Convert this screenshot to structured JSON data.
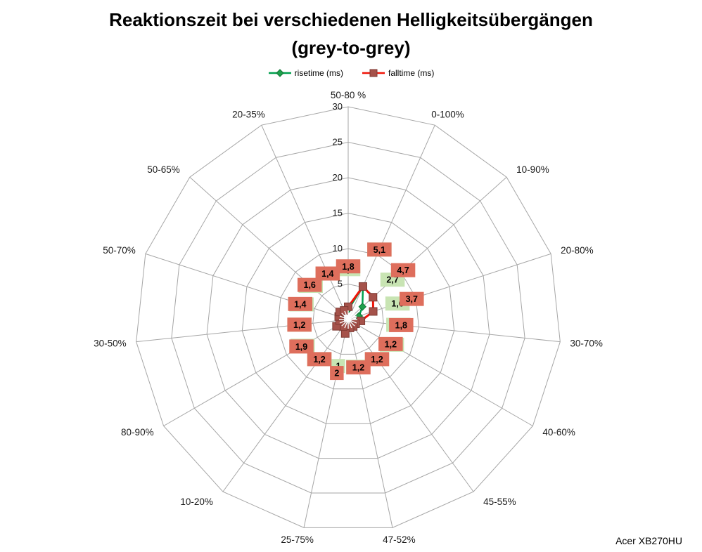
{
  "title": {
    "line1": "Reaktionszeit bei verschiedenen Helligkeitsübergängen",
    "line2": "(grey-to-grey)"
  },
  "footer": {
    "model": "Acer XB270HU"
  },
  "chart_data": {
    "type": "radar",
    "title": "Reaktionszeit bei verschiedenen Helligkeitsübergängen (grey-to-grey)",
    "unit": "ms",
    "legend_position": "top",
    "grid": true,
    "categories": [
      "50-80 %",
      "0-100%",
      "10-90%",
      "20-80%",
      "30-70%",
      "40-60%",
      "45-55%",
      "47-52%",
      "25-75%",
      "10-20%",
      "80-90%",
      "30-50%",
      "50-70%",
      "50-65%",
      "20-35%"
    ],
    "axis": {
      "min": 0,
      "max": 30,
      "step": 5,
      "ticks": [
        "0",
        "5",
        "10",
        "15",
        "20",
        "25",
        "30"
      ]
    },
    "series": [
      {
        "id": "risetime",
        "name": "risetime (ms)",
        "values": [
          1.4,
          5.1,
          2.7,
          1.6,
          1.4,
          1.4,
          1.2,
          1.1,
          1.0,
          1.2,
          1.7,
          1.2,
          1.2,
          1.4,
          1.4
        ],
        "labels": [
          "1,4",
          "5,1",
          "2,7",
          "1,6",
          "1,4",
          "1,4",
          "1,2",
          "1,1",
          "1",
          "1,2",
          "1,7",
          "1,2",
          "1,2",
          "1,4",
          "1,4"
        ],
        "line_color": "#00A04E",
        "line_width": 2.5,
        "marker": "diamond",
        "marker_fill": "#1FA04C",
        "marker_edge": "#0E7434",
        "label_bg": "#C8E4B3"
      },
      {
        "id": "falltime",
        "name": "falltime (ms)",
        "values": [
          1.8,
          5.1,
          4.7,
          3.7,
          1.8,
          1.2,
          1.2,
          1.2,
          2.0,
          1.2,
          1.9,
          1.2,
          1.4,
          1.6,
          1.4
        ],
        "labels": [
          "1,8",
          "5,1",
          "4,7",
          "3,7",
          "1,8",
          "1,2",
          "1,2",
          "1,2",
          "2",
          "1,2",
          "1,9",
          "1,2",
          "1,4",
          "1,6",
          "1,4"
        ],
        "line_color": "#F01408",
        "line_width": 3,
        "marker": "square",
        "marker_fill": "#A5524A",
        "marker_edge": "#7E3A33",
        "label_bg": "#DE6E5C"
      }
    ],
    "colors": {
      "grid": "#A6A6A6",
      "background": "#FFFFFF",
      "text": "#1A1A1A"
    }
  }
}
